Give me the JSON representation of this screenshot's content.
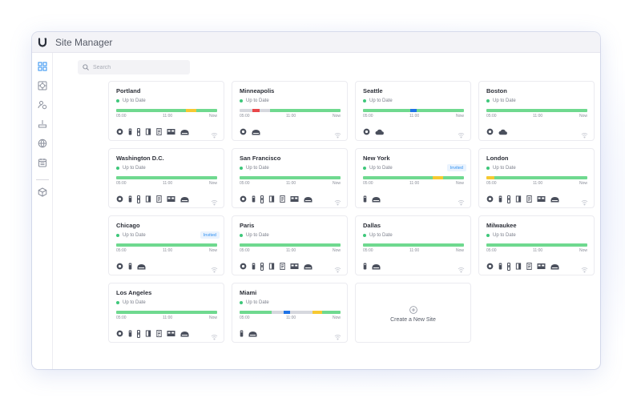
{
  "app": {
    "title": "Site Manager",
    "logo_letter": "U"
  },
  "colors": {
    "green": "#6fd98f",
    "yellow": "#f6c932",
    "red": "#e8474a",
    "blue": "#1f73e6",
    "grey": "#d6d8de",
    "accent": "#2d8ff0"
  },
  "sidebar": {
    "items": [
      "dashboard-icon",
      "devices-icon",
      "users-icon",
      "network-icon",
      "globe-icon",
      "calendar-icon",
      "box-icon"
    ]
  },
  "search": {
    "placeholder": "Search"
  },
  "time_labels": [
    "05:00",
    "11:00",
    "Now"
  ],
  "new_site": {
    "label": "Create a New Site"
  },
  "sites": [
    {
      "name": "Portland",
      "status": "Up to Date",
      "invited": "",
      "bar": [
        [
          "green",
          0.69
        ],
        [
          "yellow",
          0.1
        ],
        [
          "green",
          0.21
        ]
      ],
      "devices": [
        "camera",
        "gateway",
        "door-access",
        "switch",
        "phone",
        "nvr",
        "access-point"
      ]
    },
    {
      "name": "Minneapolis",
      "status": "Up to Date",
      "invited": "",
      "bar": [
        [
          "grey",
          0.13
        ],
        [
          "red",
          0.07
        ],
        [
          "grey",
          0.1
        ],
        [
          "green",
          0.7
        ]
      ],
      "devices": [
        "camera",
        "access-point"
      ]
    },
    {
      "name": "Seattle",
      "status": "Up to Date",
      "invited": "",
      "bar": [
        [
          "green",
          0.47
        ],
        [
          "blue",
          0.06
        ],
        [
          "green",
          0.47
        ]
      ],
      "devices": [
        "camera",
        "cloud-key"
      ]
    },
    {
      "name": "Boston",
      "status": "Up to Date",
      "invited": "",
      "bar": [
        [
          "green",
          1
        ]
      ],
      "devices": [
        "camera",
        "cloud-key"
      ]
    },
    {
      "name": "Washington D.C.",
      "status": "Up to Date",
      "invited": "",
      "bar": [
        [
          "green",
          1
        ]
      ],
      "devices": [
        "camera",
        "gateway",
        "door-access",
        "switch",
        "phone",
        "nvr",
        "access-point"
      ]
    },
    {
      "name": "San Francisco",
      "status": "Up to Date",
      "invited": "",
      "bar": [
        [
          "green",
          1
        ]
      ],
      "devices": [
        "camera",
        "gateway",
        "door-access",
        "switch",
        "phone",
        "nvr",
        "access-point"
      ]
    },
    {
      "name": "New York",
      "status": "Up to Date",
      "invited": "Invited",
      "bar": [
        [
          "green",
          0.69
        ],
        [
          "yellow",
          0.1
        ],
        [
          "green",
          0.21
        ]
      ],
      "devices": [
        "gateway",
        "access-point"
      ]
    },
    {
      "name": "London",
      "status": "Up to Date",
      "invited": "",
      "bar": [
        [
          "yellow",
          0.08
        ],
        [
          "green",
          0.92
        ]
      ],
      "devices": [
        "camera",
        "gateway",
        "door-access",
        "switch",
        "phone",
        "nvr",
        "access-point"
      ]
    },
    {
      "name": "Chicago",
      "status": "Up to Date",
      "invited": "Invited",
      "bar": [
        [
          "green",
          1
        ]
      ],
      "devices": [
        "camera",
        "gateway",
        "access-point"
      ]
    },
    {
      "name": "Paris",
      "status": "Up to Date",
      "invited": "",
      "bar": [
        [
          "green",
          1
        ]
      ],
      "devices": [
        "camera",
        "gateway",
        "door-access",
        "switch",
        "phone",
        "nvr",
        "access-point"
      ]
    },
    {
      "name": "Dallas",
      "status": "Up to Date",
      "invited": "",
      "bar": [
        [
          "green",
          1
        ]
      ],
      "devices": [
        "gateway",
        "access-point"
      ]
    },
    {
      "name": "Milwaukee",
      "status": "Up to Date",
      "invited": "",
      "bar": [
        [
          "green",
          1
        ]
      ],
      "devices": [
        "camera",
        "gateway",
        "door-access",
        "switch",
        "phone",
        "nvr",
        "access-point"
      ]
    },
    {
      "name": "Los Angeles",
      "status": "Up to Date",
      "invited": "",
      "bar": [
        [
          "green",
          1
        ]
      ],
      "devices": [
        "camera",
        "gateway",
        "door-access",
        "switch",
        "phone",
        "nvr",
        "access-point"
      ]
    },
    {
      "name": "Miami",
      "status": "Up to Date",
      "invited": "",
      "bar": [
        [
          "green",
          0.32
        ],
        [
          "grey",
          0.12
        ],
        [
          "blue",
          0.06
        ],
        [
          "grey",
          0.22
        ],
        [
          "yellow",
          0.1
        ],
        [
          "green",
          0.18
        ]
      ],
      "devices": [
        "gateway",
        "access-point"
      ]
    }
  ]
}
